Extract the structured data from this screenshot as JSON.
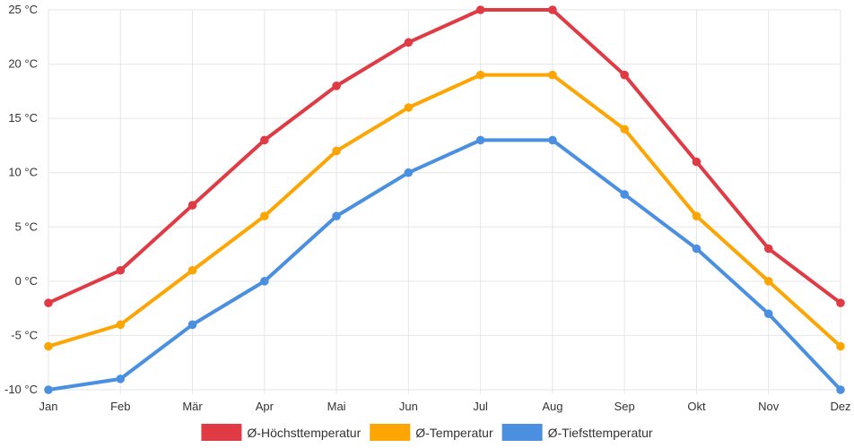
{
  "chart_data": {
    "type": "line",
    "categories": [
      "Jan",
      "Feb",
      "Mär",
      "Apr",
      "Mai",
      "Jun",
      "Jul",
      "Aug",
      "Sep",
      "Okt",
      "Nov",
      "Dez"
    ],
    "y_unit": "°C",
    "ylim": [
      -10,
      25
    ],
    "y_ticks": [
      -10,
      -5,
      0,
      5,
      10,
      15,
      20,
      25
    ],
    "y_tick_labels": [
      "-10 °C",
      "-5 °C",
      "0 °C",
      "5 °C",
      "10 °C",
      "15 °C",
      "20 °C",
      "25 °C"
    ],
    "grid": true,
    "legend_position": "bottom",
    "series": [
      {
        "name": "Ø-Höchsttemperatur",
        "color": "#e03a44",
        "values": [
          -2,
          1,
          7,
          13,
          18,
          22,
          25,
          25,
          19,
          11,
          3,
          -2
        ]
      },
      {
        "name": "Ø-Temperatur",
        "color": "#fca503",
        "values": [
          -6,
          -4,
          1,
          6,
          12,
          16,
          19,
          19,
          14,
          6,
          0,
          -6
        ]
      },
      {
        "name": "Ø-Tiefsttemperatur",
        "color": "#4a8fe0",
        "values": [
          -10,
          -9,
          -4,
          0,
          6,
          10,
          13,
          13,
          8,
          3,
          -3,
          -10
        ]
      }
    ]
  }
}
